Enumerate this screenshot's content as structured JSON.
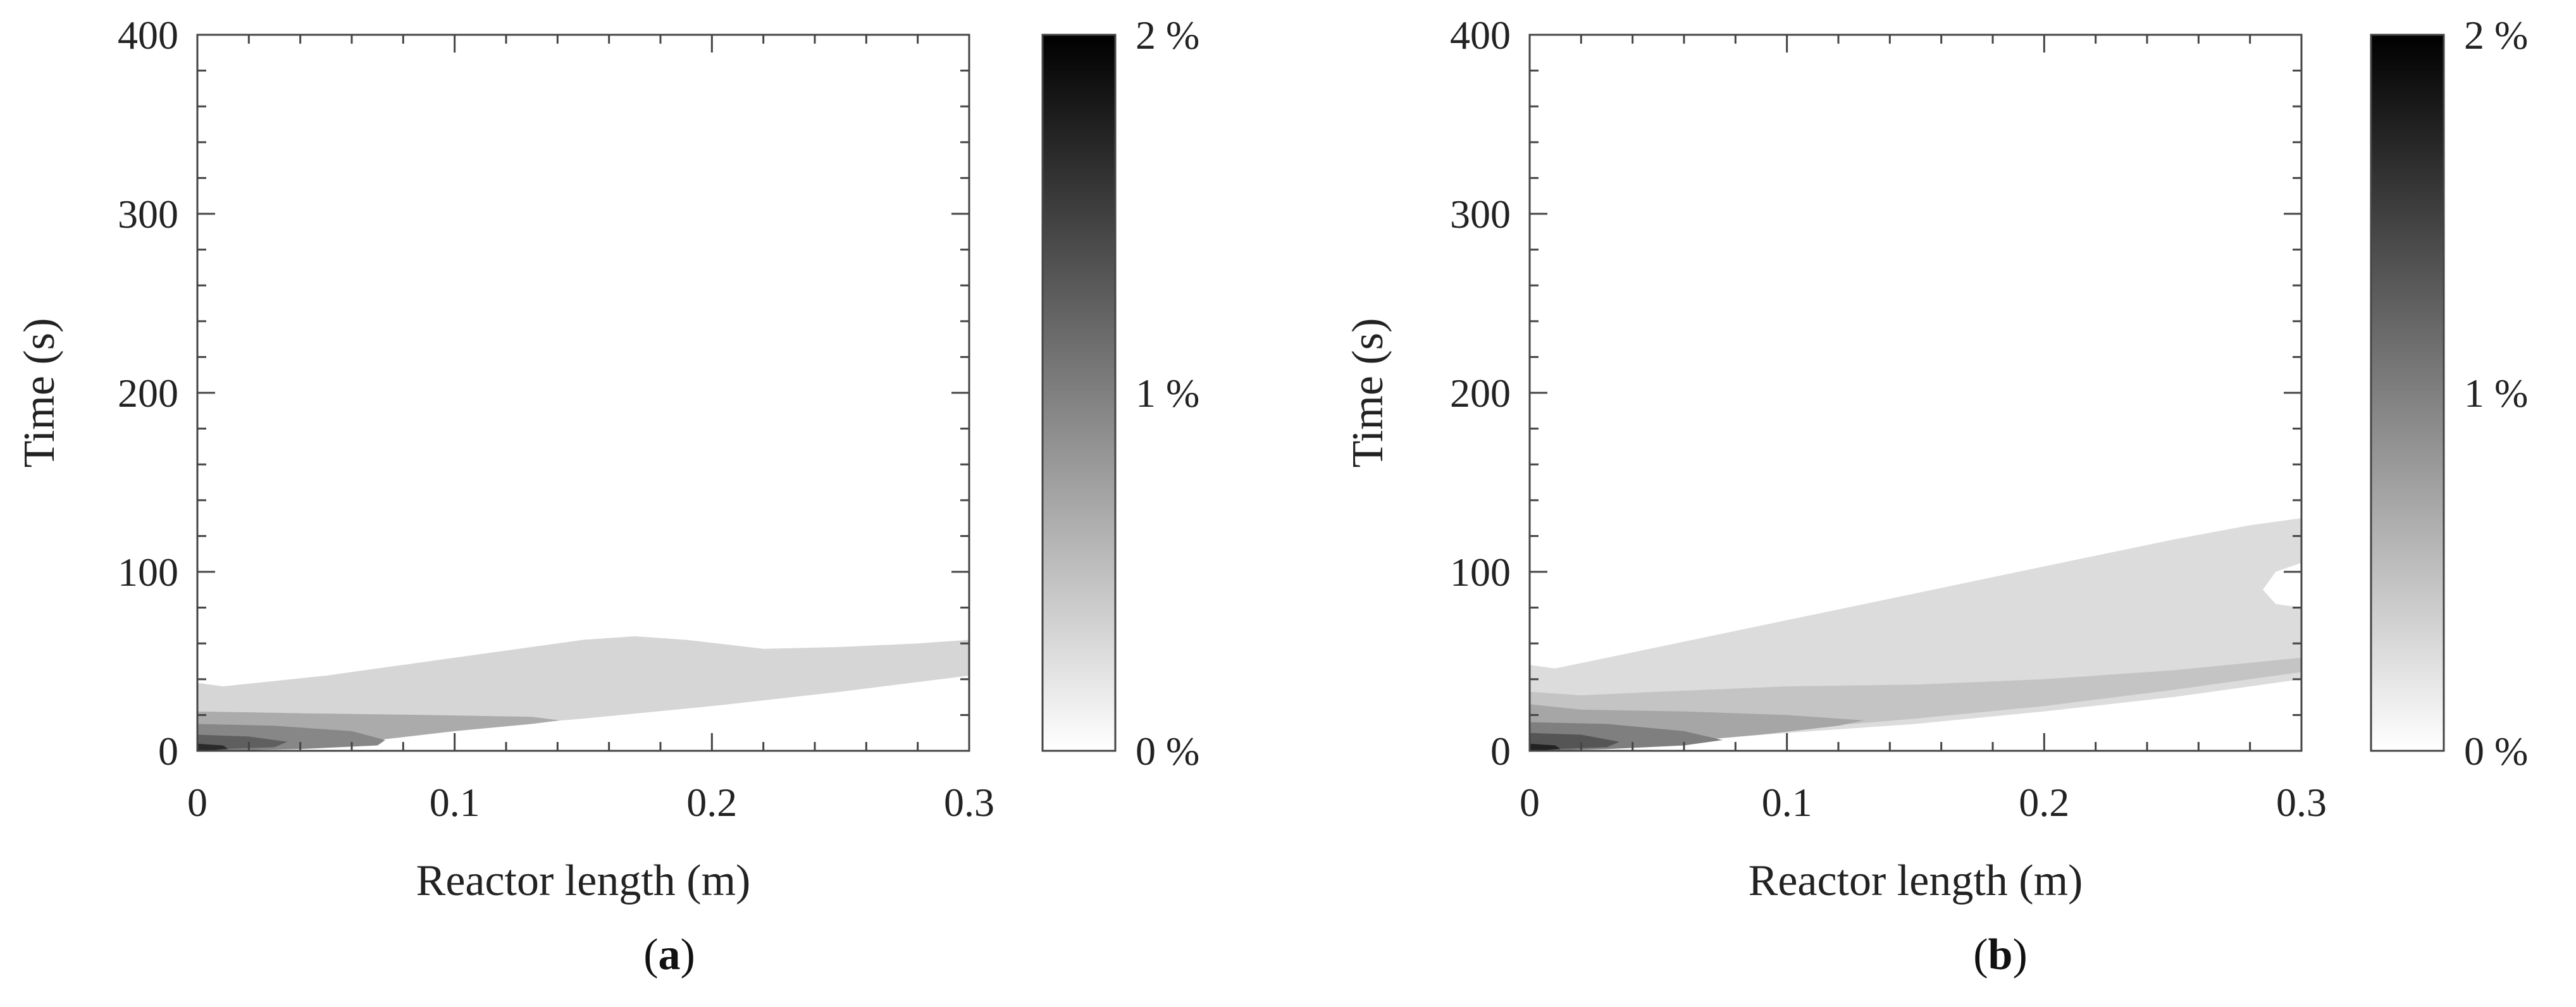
{
  "chart_data": [
    {
      "type": "heatmap",
      "panel_label": "a",
      "xlabel": "Reactor length (m)",
      "ylabel": "Time (s)",
      "xlim": [
        0,
        0.3
      ],
      "ylim": [
        0,
        400
      ],
      "x_ticks": [
        "0",
        "0.1",
        "0.2",
        "0.3"
      ],
      "y_ticks": [
        "0",
        "100",
        "200",
        "300",
        "400"
      ],
      "colorbar": {
        "range": [
          0,
          2
        ],
        "ticks": [
          "0 %",
          "1 %",
          "2 %"
        ],
        "colors": [
          "#ffffff",
          "#000000"
        ]
      },
      "contours": [
        {
          "level": 0.25,
          "color": "#d6d6d6",
          "points": [
            [
              0,
              38
            ],
            [
              0.01,
              36
            ],
            [
              0.05,
              42
            ],
            [
              0.1,
              52
            ],
            [
              0.15,
              62
            ],
            [
              0.17,
              64
            ],
            [
              0.19,
              62
            ],
            [
              0.22,
              57
            ],
            [
              0.25,
              58
            ],
            [
              0.28,
              60
            ],
            [
              0.3,
              62
            ],
            [
              0.3,
              42
            ],
            [
              0.25,
              33
            ],
            [
              0.2,
              25
            ],
            [
              0.15,
              18
            ],
            [
              0.1,
              12
            ],
            [
              0.05,
              6
            ],
            [
              0.02,
              2
            ],
            [
              0,
              0
            ]
          ]
        },
        {
          "level": 0.6,
          "color": "#ababab",
          "points": [
            [
              0,
              22
            ],
            [
              0.04,
              21
            ],
            [
              0.09,
              20
            ],
            [
              0.13,
              19
            ],
            [
              0.141,
              17
            ],
            [
              0.13,
              15
            ],
            [
              0.1,
              11
            ],
            [
              0.07,
              6
            ],
            [
              0.04,
              3
            ],
            [
              0.01,
              1
            ],
            [
              0,
              0
            ]
          ]
        },
        {
          "level": 1.0,
          "color": "#878787",
          "points": [
            [
              0,
              15
            ],
            [
              0.03,
              14
            ],
            [
              0.06,
              11
            ],
            [
              0.073,
              6
            ],
            [
              0.07,
              3
            ],
            [
              0.04,
              1
            ],
            [
              0,
              0
            ]
          ]
        },
        {
          "level": 1.4,
          "color": "#5f5f5f",
          "points": [
            [
              0,
              9
            ],
            [
              0.02,
              8
            ],
            [
              0.035,
              5
            ],
            [
              0.03,
              2
            ],
            [
              0.01,
              1
            ],
            [
              0,
              0
            ]
          ]
        },
        {
          "level": 1.8,
          "color": "#2a2a2a",
          "points": [
            [
              0,
              4
            ],
            [
              0.01,
              3
            ],
            [
              0.012,
              1
            ],
            [
              0,
              0
            ]
          ]
        }
      ]
    },
    {
      "type": "heatmap",
      "panel_label": "b",
      "xlabel": "Reactor length (m)",
      "ylabel": "Time (s)",
      "xlim": [
        0,
        0.3
      ],
      "ylim": [
        0,
        400
      ],
      "x_ticks": [
        "0",
        "0.1",
        "0.2",
        "0.3"
      ],
      "y_ticks": [
        "0",
        "100",
        "200",
        "300",
        "400"
      ],
      "colorbar": {
        "range": [
          0,
          2
        ],
        "ticks": [
          "0 %",
          "1 %",
          "2 %"
        ],
        "colors": [
          "#ffffff",
          "#000000"
        ]
      },
      "contours": [
        {
          "level": 0.25,
          "color": "#dcdcdc",
          "points": [
            [
              0,
              48
            ],
            [
              0.01,
              46
            ],
            [
              0.05,
              58
            ],
            [
              0.1,
              73
            ],
            [
              0.15,
              88
            ],
            [
              0.2,
              103
            ],
            [
              0.25,
              118
            ],
            [
              0.28,
              126
            ],
            [
              0.3,
              130
            ],
            [
              0.3,
              105
            ],
            [
              0.29,
              100
            ],
            [
              0.285,
              90
            ],
            [
              0.29,
              82
            ],
            [
              0.3,
              80
            ],
            [
              0.3,
              40
            ],
            [
              0.25,
              30
            ],
            [
              0.2,
              22
            ],
            [
              0.15,
              15
            ],
            [
              0.1,
              10
            ],
            [
              0.05,
              5
            ],
            [
              0.02,
              2
            ],
            [
              0,
              0
            ]
          ]
        },
        {
          "level": 0.5,
          "color": "#c4c4c4",
          "points": [
            [
              0,
              33
            ],
            [
              0.02,
              31
            ],
            [
              0.05,
              33
            ],
            [
              0.1,
              36
            ],
            [
              0.15,
              37
            ],
            [
              0.2,
              40
            ],
            [
              0.25,
              45
            ],
            [
              0.3,
              52
            ],
            [
              0.3,
              44
            ],
            [
              0.25,
              34
            ],
            [
              0.2,
              25
            ],
            [
              0.15,
              18
            ],
            [
              0.1,
              12
            ],
            [
              0.05,
              6
            ],
            [
              0.02,
              2
            ],
            [
              0,
              0
            ]
          ]
        },
        {
          "level": 0.75,
          "color": "#a6a6a6",
          "points": [
            [
              0,
              26
            ],
            [
              0.02,
              23
            ],
            [
              0.06,
              22
            ],
            [
              0.1,
              20
            ],
            [
              0.13,
              17
            ],
            [
              0.12,
              14
            ],
            [
              0.09,
              9
            ],
            [
              0.05,
              4
            ],
            [
              0.02,
              1
            ],
            [
              0,
              0
            ]
          ]
        },
        {
          "level": 1.1,
          "color": "#7f7f7f",
          "points": [
            [
              0,
              16
            ],
            [
              0.03,
              15
            ],
            [
              0.06,
              11
            ],
            [
              0.075,
              6
            ],
            [
              0.06,
              3
            ],
            [
              0.03,
              1
            ],
            [
              0,
              0
            ]
          ]
        },
        {
          "level": 1.5,
          "color": "#555555",
          "points": [
            [
              0,
              10
            ],
            [
              0.02,
              9
            ],
            [
              0.035,
              5
            ],
            [
              0.03,
              2
            ],
            [
              0.01,
              1
            ],
            [
              0,
              0
            ]
          ]
        },
        {
          "level": 1.85,
          "color": "#222222",
          "points": [
            [
              0,
              4
            ],
            [
              0.01,
              3
            ],
            [
              0.012,
              1
            ],
            [
              0,
              0
            ]
          ]
        }
      ]
    }
  ]
}
